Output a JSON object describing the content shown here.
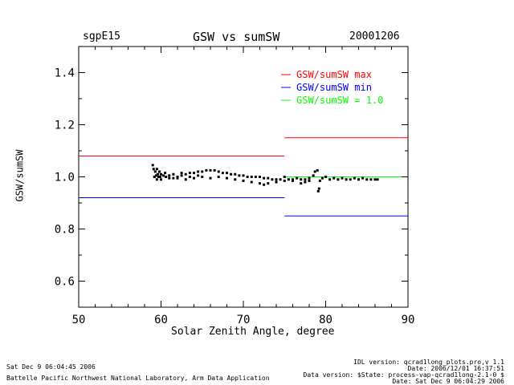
{
  "header": {
    "left": "sgpE15",
    "center": "GSW vs sumSW",
    "right": "20001206"
  },
  "footer": {
    "left_line1": "Sat Dec  9 06:04:45 2006",
    "left_line2": "Battelle Pacific Northwest National Laboratory, Arm Data Application",
    "right_line1": "IDL version: qcrad1long_plots.pro,v 1.1",
    "right_line2": "Date: 2006/12/01 16:37:51",
    "right_line3": "Data version: $State: process-vap-qcrad1long-2.1-0 $",
    "right_line4": "Date: Sat Dec  9 06:04:29 2006"
  },
  "chart_data": {
    "type": "scatter",
    "title": "GSW vs sumSW",
    "xlabel": "Solar Zenith Angle, degree",
    "ylabel": "GSW/sumSW",
    "xlim": [
      50,
      90
    ],
    "ylim": [
      0.5,
      1.5
    ],
    "xticks": [
      "50",
      "60",
      "70",
      "80",
      "90"
    ],
    "yticks": [
      "0.6",
      "0.8",
      "1.0",
      "1.2",
      "1.4"
    ],
    "grid": false,
    "legend_position": "top-right",
    "legend": [
      {
        "label": "GSW/sumSW max",
        "color": "#ff0000"
      },
      {
        "label": "GSW/sumSW min",
        "color": "#0000ff"
      },
      {
        "label": "GSW/sumSW = 1.0",
        "color": "#00ff00"
      }
    ],
    "lines": [
      {
        "name": "max",
        "color": "#ff0000",
        "segments": [
          [
            50,
            75,
            1.08
          ],
          [
            75,
            90,
            1.15
          ]
        ]
      },
      {
        "name": "min",
        "color": "#0000ff",
        "segments": [
          [
            50,
            75,
            0.92
          ],
          [
            75,
            90,
            0.85
          ]
        ]
      },
      {
        "name": "one",
        "color": "#00ff00",
        "segments": [
          [
            75,
            90,
            1.0
          ]
        ]
      }
    ],
    "series": [
      {
        "color": "#000000",
        "points": [
          [
            59.0,
            1.045
          ],
          [
            59.1,
            1.03
          ],
          [
            59.2,
            1.0
          ],
          [
            59.3,
            1.02
          ],
          [
            59.4,
            1.005
          ],
          [
            59.5,
            0.99
          ],
          [
            59.6,
            1.01
          ],
          [
            59.7,
            1.0
          ],
          [
            59.8,
            1.02
          ],
          [
            60.0,
            1.01
          ],
          [
            60.3,
            1.005
          ],
          [
            60.6,
            1.0
          ],
          [
            61.0,
            1.005
          ],
          [
            61.5,
            1.01
          ],
          [
            62.0,
            1.0
          ],
          [
            62.5,
            1.005
          ],
          [
            63.0,
            1.01
          ],
          [
            63.5,
            1.015
          ],
          [
            64.0,
            1.015
          ],
          [
            64.5,
            1.02
          ],
          [
            65.0,
            1.02
          ],
          [
            65.5,
            1.025
          ],
          [
            66.0,
            1.025
          ],
          [
            66.5,
            1.025
          ],
          [
            67.0,
            1.02
          ],
          [
            67.5,
            1.015
          ],
          [
            68.0,
            1.015
          ],
          [
            68.5,
            1.01
          ],
          [
            69.0,
            1.01
          ],
          [
            69.5,
            1.005
          ],
          [
            70.0,
            1.005
          ],
          [
            70.5,
            1.0
          ],
          [
            71.0,
            1.0
          ],
          [
            71.5,
            1.0
          ],
          [
            72.0,
            1.0
          ],
          [
            72.5,
            0.995
          ],
          [
            73.0,
            0.995
          ],
          [
            73.5,
            0.99
          ],
          [
            74.0,
            0.99
          ],
          [
            74.5,
            0.99
          ],
          [
            75.0,
            0.985
          ],
          [
            75.5,
            0.99
          ],
          [
            76.0,
            0.99
          ],
          [
            76.5,
            0.995
          ],
          [
            77.0,
            0.99
          ],
          [
            77.5,
            0.99
          ],
          [
            78.0,
            0.995
          ],
          [
            78.5,
            1.005
          ],
          [
            78.7,
            1.02
          ],
          [
            79.0,
            1.025
          ],
          [
            79.3,
            0.985
          ],
          [
            79.6,
            0.995
          ],
          [
            80.0,
            1.0
          ],
          [
            80.5,
            0.99
          ],
          [
            81.0,
            0.995
          ],
          [
            81.5,
            0.99
          ],
          [
            82.0,
            0.995
          ],
          [
            82.5,
            0.99
          ],
          [
            83.0,
            0.99
          ],
          [
            83.5,
            0.995
          ],
          [
            84.0,
            0.99
          ],
          [
            84.5,
            0.995
          ],
          [
            85.0,
            0.99
          ],
          [
            85.5,
            0.99
          ],
          [
            86.0,
            0.99
          ],
          [
            86.3,
            0.99
          ],
          [
            60.0,
            0.99
          ],
          [
            61.0,
            0.995
          ],
          [
            62.0,
            0.995
          ],
          [
            63.0,
            0.99
          ],
          [
            64.0,
            0.995
          ],
          [
            65.0,
            1.0
          ],
          [
            66.0,
            0.995
          ],
          [
            67.0,
            1.0
          ],
          [
            68.0,
            0.995
          ],
          [
            69.0,
            0.99
          ],
          [
            70.0,
            0.985
          ],
          [
            71.0,
            0.98
          ],
          [
            72.0,
            0.975
          ],
          [
            72.5,
            0.97
          ],
          [
            73.0,
            0.975
          ],
          [
            74.0,
            0.98
          ],
          [
            75.0,
            1.0
          ],
          [
            76.0,
            0.985
          ],
          [
            77.0,
            0.975
          ],
          [
            77.5,
            0.98
          ],
          [
            78.0,
            0.985
          ],
          [
            79.2,
            0.955
          ],
          [
            79.1,
            0.945
          ],
          [
            59.5,
            1.03
          ],
          [
            59.9,
            1.0
          ],
          [
            60.5,
            1.015
          ],
          [
            61.5,
            0.995
          ],
          [
            62.5,
            1.015
          ],
          [
            63.5,
            1.0
          ],
          [
            64.5,
            1.005
          ]
        ]
      }
    ]
  }
}
